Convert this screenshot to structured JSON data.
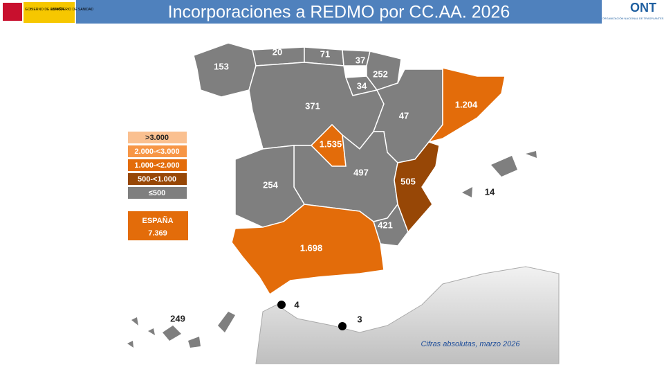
{
  "header": {
    "title": "Incorporaciones a REDMO por CC.AA. 2026",
    "logo_left": [
      "GOBIERNO DE ESPAÑA",
      "MINISTERIO DE SANIDAD"
    ],
    "logo_right": {
      "name": "ONT",
      "subtitle": "ORGANIZACIÓN NACIONAL DE TRASPLANTES"
    }
  },
  "legend": [
    ">3.000",
    "2.000-<3.000",
    "1.000-<2.000",
    "500-<1.000",
    "≤500"
  ],
  "total": {
    "label": "ESPAÑA",
    "value": "7.369"
  },
  "regions": [
    "153",
    "20",
    "71",
    "37",
    "252",
    "34",
    "371",
    "47",
    "1.204",
    "1.535",
    "497",
    "254",
    "505",
    "421",
    "1.698",
    "14",
    "249",
    "4",
    "3"
  ],
  "footnote": "Cifras absolutas, marzo 2026"
}
